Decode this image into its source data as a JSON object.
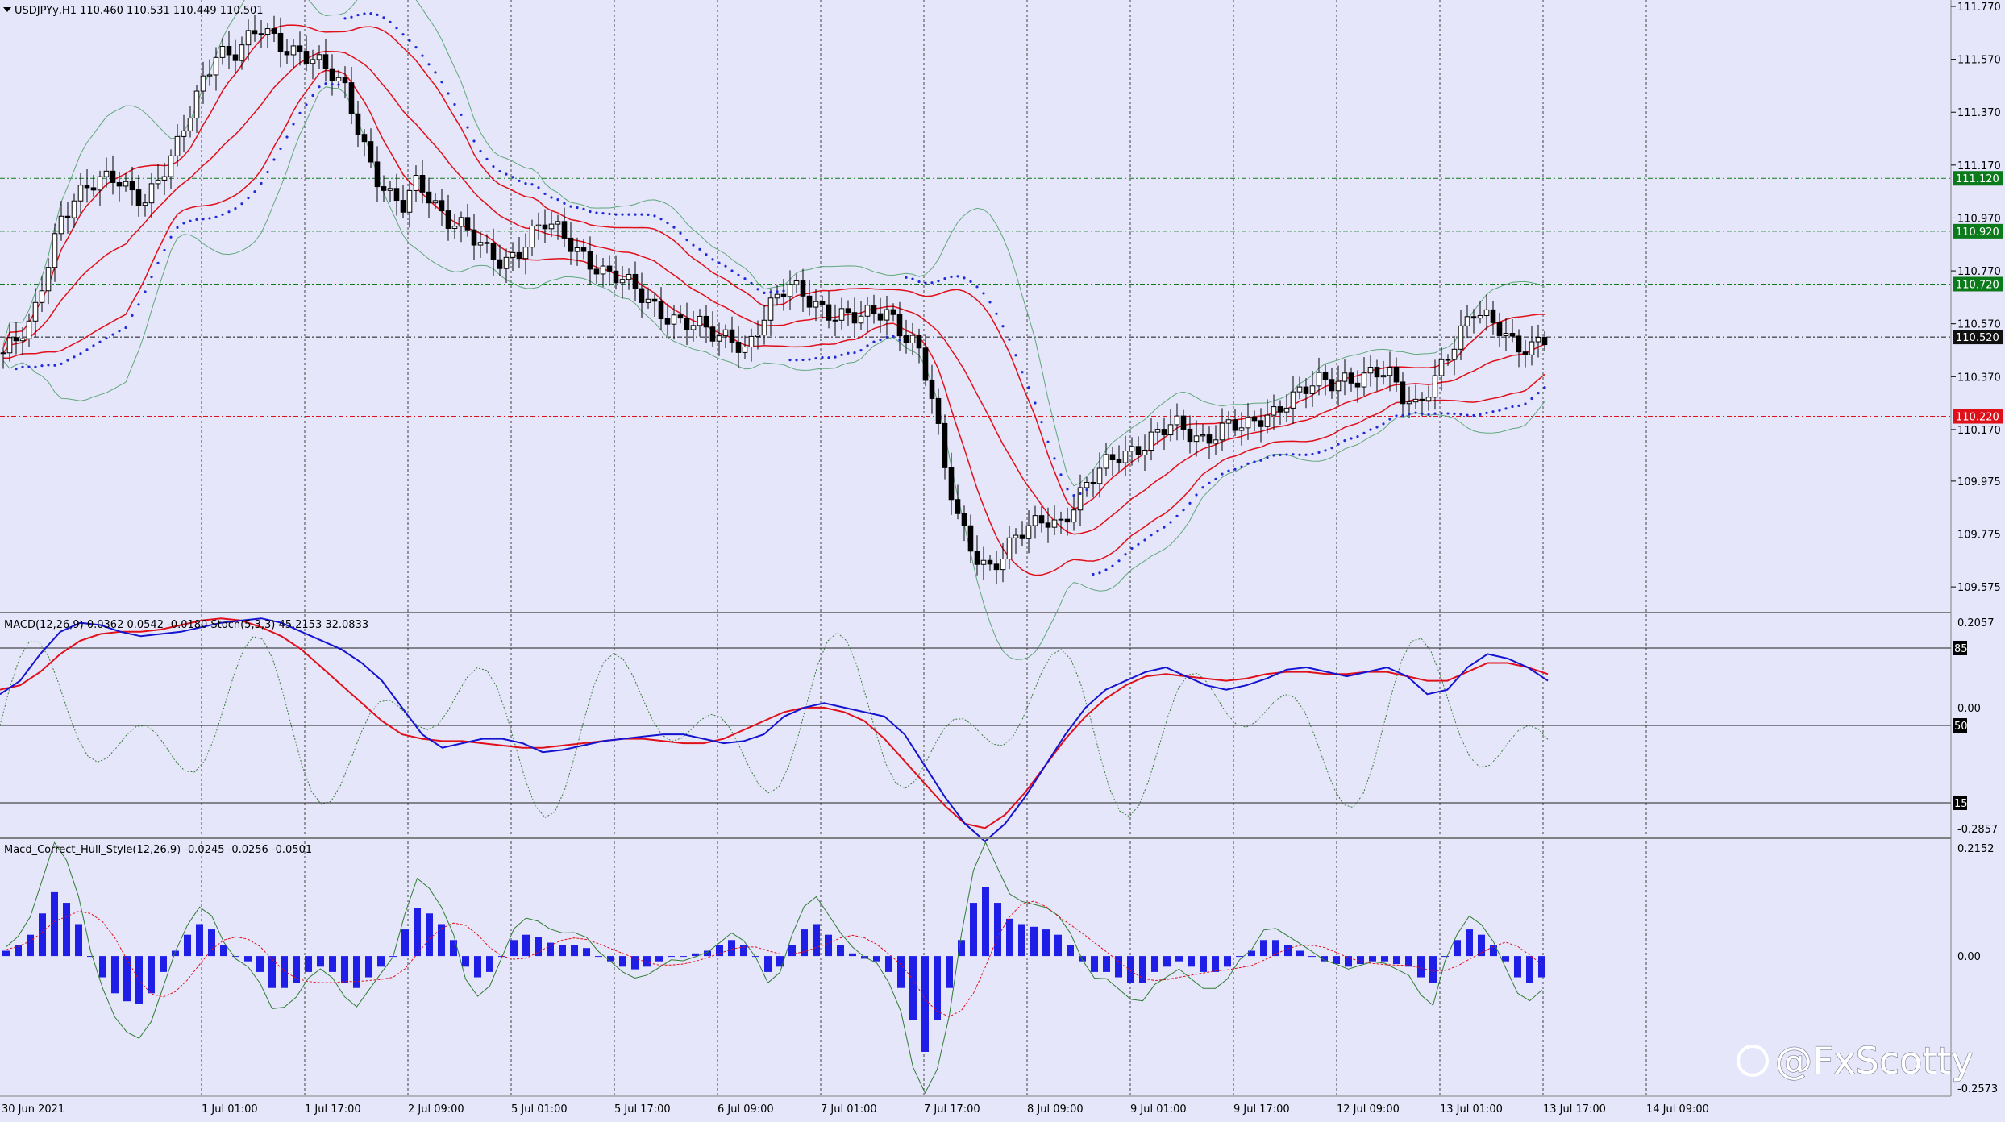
{
  "colors": {
    "background": "#e6e6fa",
    "candle": "#000000",
    "bands_outer": "#5ea87a",
    "bands_inner": "#e0101a",
    "sar": "#1e2ad8",
    "macd_line": "#1414d0",
    "signal_line": "#e0101a",
    "stoch": "#3a7a3a",
    "hist": "#1e1ee6",
    "hull_green": "#2e7d32",
    "hull_red": "#e0101a",
    "level_green": "#0b7a1a",
    "level_red": "#e0101a",
    "level_dark": "#111111",
    "grid": "#404040"
  },
  "header": {
    "symbol_line": "USDJPYy,H1  110.460 110.531 110.449 110.501",
    "macd_label": "MACD(12,26,9) 0.0362 0.0542 -0.0180  Stoch(5,3,3) 45.2153 32.0833",
    "hull_label": "Macd_Correct_Hull_Style(12,26,9) -0.0245 -0.0256 -0.0501"
  },
  "watermark": "@FxScotty",
  "chart_data": [
    {
      "type": "candlestick",
      "title": "USDJPYy,H1",
      "ohlc_last": {
        "open": 110.46,
        "high": 110.531,
        "low": 110.449,
        "close": 110.501
      },
      "ylim": [
        109.49,
        111.77
      ],
      "y_ticks": [
        "111.770",
        "111.570",
        "111.370",
        "111.170",
        "110.970",
        "110.770",
        "110.570",
        "110.370",
        "110.170",
        "109.975",
        "109.775",
        "109.575"
      ],
      "x_ticks": [
        "30 Jun 2021",
        "1 Jul 01:00",
        "1 Jul 17:00",
        "2 Jul 09:00",
        "5 Jul 01:00",
        "5 Jul 17:00",
        "6 Jul 09:00",
        "7 Jul 01:00",
        "7 Jul 17:00",
        "8 Jul 09:00",
        "9 Jul 01:00",
        "9 Jul 17:00",
        "12 Jul 09:00",
        "13 Jul 01:00",
        "13 Jul 17:00",
        "14 Jul 09:00"
      ],
      "close_series": [
        110.46,
        110.5,
        110.56,
        110.78,
        110.98,
        111.05,
        111.08,
        111.1,
        111.12,
        111.08,
        111.05,
        111.12,
        111.2,
        111.35,
        111.5,
        111.62,
        111.58,
        111.62,
        111.68,
        111.65,
        111.62,
        111.6,
        111.55,
        111.5,
        111.45,
        111.3,
        111.15,
        111.05,
        111.0,
        111.1,
        111.05,
        110.98,
        110.95,
        110.88,
        110.82,
        110.8,
        110.85,
        110.92,
        110.95,
        110.9,
        110.85,
        110.82,
        110.78,
        110.75,
        110.7,
        110.65,
        110.62,
        110.6,
        110.58,
        110.55,
        110.5,
        110.52,
        110.48,
        110.58,
        110.65,
        110.7,
        110.68,
        110.65,
        110.62,
        110.6,
        110.58,
        110.6,
        110.62,
        110.55,
        110.5,
        110.3,
        110.0,
        109.82,
        109.72,
        109.65,
        109.68,
        109.75,
        109.8,
        109.85,
        109.82,
        109.88,
        109.95,
        110.02,
        110.08,
        110.1,
        110.12,
        110.15,
        110.18,
        110.16,
        110.14,
        110.17,
        110.19,
        110.16,
        110.2,
        110.24,
        110.3,
        110.32,
        110.34,
        110.33,
        110.36,
        110.38,
        110.4,
        110.38,
        110.28,
        110.25,
        110.35,
        110.45,
        110.52,
        110.6,
        110.58,
        110.56,
        110.5,
        110.48,
        110.5
      ],
      "levels": [
        {
          "label": "111.120",
          "value": 111.12,
          "color": "green"
        },
        {
          "label": "110.920",
          "value": 110.92,
          "color": "green"
        },
        {
          "label": "110.720",
          "value": 110.72,
          "color": "green"
        },
        {
          "label": "110.520",
          "value": 110.52,
          "color": "dark"
        },
        {
          "label": "110.220",
          "value": 110.22,
          "color": "red"
        }
      ]
    },
    {
      "type": "line",
      "title": "MACD(12,26,9) 0.0362 0.0542 -0.0180  Stoch(5,3,3) 45.2153 32.0833",
      "y_ticks": [
        "0.2057",
        "0.00",
        "-0.2857"
      ],
      "stoch_levels": [
        "85",
        "50",
        "15"
      ],
      "series": [
        {
          "name": "MACD",
          "values": [
            0.03,
            0.06,
            0.12,
            0.17,
            0.19,
            0.185,
            0.17,
            0.16,
            0.165,
            0.17,
            0.18,
            0.19,
            0.195,
            0.2,
            0.19,
            0.17,
            0.15,
            0.13,
            0.1,
            0.06,
            0.0,
            -0.06,
            -0.09,
            -0.08,
            -0.07,
            -0.07,
            -0.08,
            -0.1,
            -0.095,
            -0.085,
            -0.075,
            -0.07,
            -0.065,
            -0.06,
            -0.06,
            -0.07,
            -0.08,
            -0.075,
            -0.06,
            -0.02,
            0.0,
            0.01,
            0.0,
            -0.01,
            -0.02,
            -0.06,
            -0.13,
            -0.2,
            -0.26,
            -0.3,
            -0.26,
            -0.2,
            -0.13,
            -0.06,
            0.0,
            0.04,
            0.06,
            0.08,
            0.09,
            0.07,
            0.05,
            0.04,
            0.05,
            0.065,
            0.085,
            0.09,
            0.08,
            0.07,
            0.08,
            0.09,
            0.07,
            0.03,
            0.04,
            0.09,
            0.12,
            0.11,
            0.09,
            0.06
          ]
        },
        {
          "name": "Signal",
          "values": [
            0.04,
            0.05,
            0.08,
            0.12,
            0.15,
            0.165,
            0.17,
            0.17,
            0.175,
            0.185,
            0.195,
            0.2,
            0.195,
            0.18,
            0.16,
            0.13,
            0.09,
            0.05,
            0.01,
            -0.03,
            -0.06,
            -0.07,
            -0.075,
            -0.075,
            -0.08,
            -0.085,
            -0.09,
            -0.09,
            -0.085,
            -0.08,
            -0.075,
            -0.07,
            -0.07,
            -0.075,
            -0.08,
            -0.08,
            -0.07,
            -0.05,
            -0.03,
            -0.01,
            0.0,
            0.0,
            -0.01,
            -0.03,
            -0.07,
            -0.12,
            -0.17,
            -0.22,
            -0.26,
            -0.27,
            -0.24,
            -0.19,
            -0.13,
            -0.07,
            -0.02,
            0.02,
            0.05,
            0.07,
            0.075,
            0.07,
            0.065,
            0.06,
            0.065,
            0.075,
            0.08,
            0.08,
            0.075,
            0.075,
            0.08,
            0.08,
            0.07,
            0.06,
            0.06,
            0.08,
            0.1,
            0.1,
            0.09,
            0.075
          ]
        }
      ]
    },
    {
      "type": "bar",
      "title": "Macd_Correct_Hull_Style(12,26,9) -0.0245 -0.0256 -0.0501",
      "y_ticks": [
        "0.2152",
        "0.00",
        "-0.2573"
      ],
      "values": [
        0.01,
        0.02,
        0.04,
        0.08,
        0.12,
        0.1,
        0.06,
        0.0,
        -0.04,
        -0.07,
        -0.085,
        -0.09,
        -0.07,
        -0.03,
        0.01,
        0.04,
        0.06,
        0.05,
        0.02,
        0.0,
        -0.01,
        -0.03,
        -0.06,
        -0.06,
        -0.05,
        -0.03,
        -0.02,
        -0.03,
        -0.05,
        -0.06,
        -0.04,
        -0.02,
        0.0,
        0.05,
        0.09,
        0.08,
        0.06,
        0.03,
        -0.02,
        -0.04,
        -0.03,
        0.0,
        0.03,
        0.04,
        0.035,
        0.025,
        0.02,
        0.02,
        0.015,
        0.0,
        -0.01,
        -0.02,
        -0.025,
        -0.02,
        -0.01,
        0.0,
        0.0,
        0.005,
        0.01,
        0.02,
        0.03,
        0.02,
        0.0,
        -0.03,
        -0.02,
        0.02,
        0.05,
        0.06,
        0.04,
        0.02,
        0.005,
        -0.005,
        -0.01,
        -0.03,
        -0.06,
        -0.12,
        -0.18,
        -0.12,
        -0.06,
        0.03,
        0.1,
        0.13,
        0.1,
        0.07,
        0.06,
        0.055,
        0.05,
        0.04,
        0.02,
        -0.01,
        -0.03,
        -0.03,
        -0.04,
        -0.05,
        -0.05,
        -0.03,
        -0.02,
        -0.01,
        -0.02,
        -0.03,
        -0.03,
        -0.02,
        0.0,
        0.01,
        0.03,
        0.03,
        0.02,
        0.01,
        0.0,
        -0.01,
        -0.015,
        -0.02,
        -0.015,
        -0.01,
        -0.01,
        -0.015,
        -0.02,
        -0.04,
        -0.05,
        0.0,
        0.03,
        0.05,
        0.04,
        0.02,
        -0.01,
        -0.04,
        -0.05,
        -0.04
      ]
    }
  ]
}
